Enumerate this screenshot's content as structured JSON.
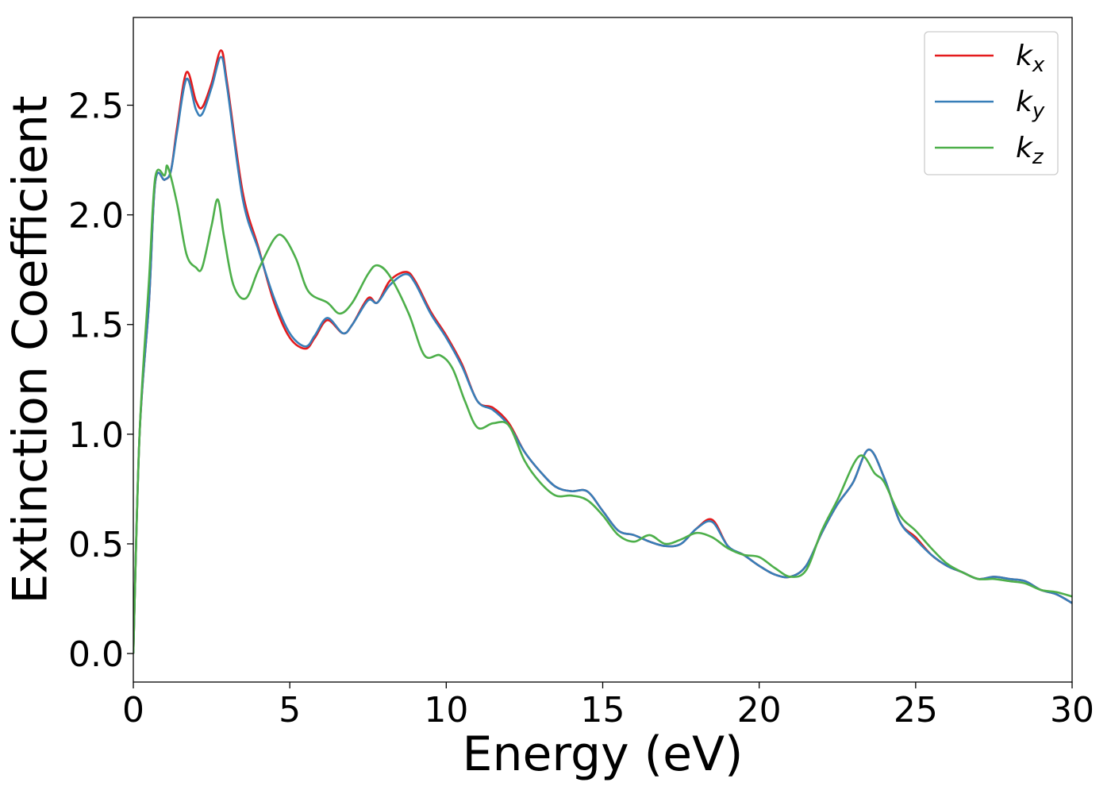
{
  "chart_data": {
    "type": "line",
    "title": "",
    "xlabel": "Energy (eV)",
    "ylabel": "Extinction Coefficient",
    "xlim": [
      0,
      30
    ],
    "ylim": [
      -0.13,
      2.9
    ],
    "xticks": [
      0,
      5,
      10,
      15,
      20,
      25,
      30
    ],
    "xtick_labels": [
      "0",
      "5",
      "10",
      "15",
      "20",
      "25",
      "30"
    ],
    "yticks": [
      0.0,
      0.5,
      1.0,
      1.5,
      2.0,
      2.5
    ],
    "ytick_labels": [
      "0.0",
      "0.5",
      "1.0",
      "1.5",
      "2.0",
      "2.5"
    ],
    "grid": false,
    "legend_position": "top-right",
    "series": [
      {
        "name": "k",
        "subscript": "x",
        "color": "#e41a1c",
        "points": [
          [
            0.0,
            0.0
          ],
          [
            0.2,
            1.0
          ],
          [
            0.5,
            1.6
          ],
          [
            0.7,
            2.15
          ],
          [
            1.0,
            2.16
          ],
          [
            1.2,
            2.2
          ],
          [
            1.4,
            2.4
          ],
          [
            1.7,
            2.65
          ],
          [
            2.0,
            2.52
          ],
          [
            2.2,
            2.49
          ],
          [
            2.5,
            2.6
          ],
          [
            2.8,
            2.75
          ],
          [
            3.0,
            2.6
          ],
          [
            3.5,
            2.1
          ],
          [
            4.0,
            1.85
          ],
          [
            4.5,
            1.6
          ],
          [
            5.0,
            1.44
          ],
          [
            5.5,
            1.39
          ],
          [
            5.8,
            1.44
          ],
          [
            6.2,
            1.52
          ],
          [
            6.7,
            1.46
          ],
          [
            7.0,
            1.5
          ],
          [
            7.5,
            1.62
          ],
          [
            7.8,
            1.6
          ],
          [
            8.2,
            1.7
          ],
          [
            8.7,
            1.74
          ],
          [
            9.0,
            1.7
          ],
          [
            9.5,
            1.56
          ],
          [
            10.0,
            1.45
          ],
          [
            10.5,
            1.32
          ],
          [
            11.0,
            1.15
          ],
          [
            11.5,
            1.12
          ],
          [
            12.0,
            1.05
          ],
          [
            12.5,
            0.92
          ],
          [
            13.0,
            0.83
          ],
          [
            13.5,
            0.76
          ],
          [
            14.0,
            0.74
          ],
          [
            14.5,
            0.74
          ],
          [
            15.0,
            0.65
          ],
          [
            15.5,
            0.56
          ],
          [
            16.0,
            0.54
          ],
          [
            16.5,
            0.51
          ],
          [
            17.0,
            0.49
          ],
          [
            17.5,
            0.5
          ],
          [
            18.0,
            0.57
          ],
          [
            18.5,
            0.61
          ],
          [
            19.0,
            0.49
          ],
          [
            19.5,
            0.45
          ],
          [
            20.0,
            0.4
          ],
          [
            20.5,
            0.36
          ],
          [
            21.0,
            0.35
          ],
          [
            21.5,
            0.4
          ],
          [
            22.0,
            0.55
          ],
          [
            22.5,
            0.68
          ],
          [
            23.0,
            0.78
          ],
          [
            23.5,
            0.93
          ],
          [
            24.0,
            0.8
          ],
          [
            24.5,
            0.6
          ],
          [
            25.0,
            0.53
          ],
          [
            25.5,
            0.45
          ],
          [
            26.0,
            0.4
          ],
          [
            26.5,
            0.37
          ],
          [
            27.0,
            0.34
          ],
          [
            27.5,
            0.35
          ],
          [
            28.0,
            0.34
          ],
          [
            28.5,
            0.33
          ],
          [
            29.0,
            0.29
          ],
          [
            29.5,
            0.27
          ],
          [
            30.0,
            0.23
          ]
        ]
      },
      {
        "name": "k",
        "subscript": "y",
        "color": "#377eb8",
        "points": [
          [
            0.0,
            0.0
          ],
          [
            0.2,
            1.0
          ],
          [
            0.5,
            1.6
          ],
          [
            0.7,
            2.15
          ],
          [
            1.0,
            2.16
          ],
          [
            1.2,
            2.2
          ],
          [
            1.4,
            2.38
          ],
          [
            1.7,
            2.62
          ],
          [
            2.0,
            2.48
          ],
          [
            2.2,
            2.46
          ],
          [
            2.5,
            2.58
          ],
          [
            2.8,
            2.72
          ],
          [
            3.0,
            2.58
          ],
          [
            3.5,
            2.07
          ],
          [
            4.0,
            1.84
          ],
          [
            4.5,
            1.62
          ],
          [
            5.0,
            1.46
          ],
          [
            5.5,
            1.4
          ],
          [
            5.8,
            1.45
          ],
          [
            6.2,
            1.53
          ],
          [
            6.7,
            1.46
          ],
          [
            7.0,
            1.5
          ],
          [
            7.5,
            1.61
          ],
          [
            7.8,
            1.6
          ],
          [
            8.2,
            1.68
          ],
          [
            8.7,
            1.73
          ],
          [
            9.0,
            1.69
          ],
          [
            9.5,
            1.55
          ],
          [
            10.0,
            1.44
          ],
          [
            10.5,
            1.31
          ],
          [
            11.0,
            1.15
          ],
          [
            11.5,
            1.11
          ],
          [
            12.0,
            1.04
          ],
          [
            12.5,
            0.92
          ],
          [
            13.0,
            0.83
          ],
          [
            13.5,
            0.76
          ],
          [
            14.0,
            0.74
          ],
          [
            14.5,
            0.74
          ],
          [
            15.0,
            0.65
          ],
          [
            15.5,
            0.56
          ],
          [
            16.0,
            0.54
          ],
          [
            16.5,
            0.51
          ],
          [
            17.0,
            0.49
          ],
          [
            17.5,
            0.5
          ],
          [
            18.0,
            0.57
          ],
          [
            18.5,
            0.6
          ],
          [
            19.0,
            0.49
          ],
          [
            19.5,
            0.45
          ],
          [
            20.0,
            0.4
          ],
          [
            20.5,
            0.36
          ],
          [
            21.0,
            0.35
          ],
          [
            21.5,
            0.4
          ],
          [
            22.0,
            0.55
          ],
          [
            22.5,
            0.68
          ],
          [
            23.0,
            0.78
          ],
          [
            23.5,
            0.93
          ],
          [
            24.0,
            0.8
          ],
          [
            24.5,
            0.6
          ],
          [
            25.0,
            0.52
          ],
          [
            25.5,
            0.45
          ],
          [
            26.0,
            0.4
          ],
          [
            26.5,
            0.37
          ],
          [
            27.0,
            0.34
          ],
          [
            27.5,
            0.35
          ],
          [
            28.0,
            0.34
          ],
          [
            28.5,
            0.33
          ],
          [
            29.0,
            0.29
          ],
          [
            29.5,
            0.27
          ],
          [
            30.0,
            0.23
          ]
        ]
      },
      {
        "name": "k",
        "subscript": "z",
        "color": "#4daf4a",
        "points": [
          [
            0.0,
            0.0
          ],
          [
            0.2,
            1.0
          ],
          [
            0.5,
            1.7
          ],
          [
            0.7,
            2.17
          ],
          [
            1.0,
            2.18
          ],
          [
            1.1,
            2.22
          ],
          [
            1.4,
            2.05
          ],
          [
            1.7,
            1.82
          ],
          [
            2.0,
            1.76
          ],
          [
            2.2,
            1.76
          ],
          [
            2.5,
            1.95
          ],
          [
            2.7,
            2.07
          ],
          [
            2.9,
            1.9
          ],
          [
            3.2,
            1.68
          ],
          [
            3.6,
            1.62
          ],
          [
            4.0,
            1.75
          ],
          [
            4.5,
            1.89
          ],
          [
            4.8,
            1.9
          ],
          [
            5.2,
            1.8
          ],
          [
            5.6,
            1.65
          ],
          [
            6.2,
            1.6
          ],
          [
            6.6,
            1.55
          ],
          [
            7.0,
            1.6
          ],
          [
            7.5,
            1.73
          ],
          [
            7.8,
            1.77
          ],
          [
            8.2,
            1.72
          ],
          [
            8.8,
            1.55
          ],
          [
            9.3,
            1.36
          ],
          [
            9.8,
            1.36
          ],
          [
            10.2,
            1.3
          ],
          [
            10.6,
            1.15
          ],
          [
            11.0,
            1.03
          ],
          [
            11.5,
            1.05
          ],
          [
            12.0,
            1.04
          ],
          [
            12.5,
            0.88
          ],
          [
            13.0,
            0.78
          ],
          [
            13.5,
            0.72
          ],
          [
            14.0,
            0.72
          ],
          [
            14.5,
            0.7
          ],
          [
            15.0,
            0.63
          ],
          [
            15.5,
            0.54
          ],
          [
            16.0,
            0.51
          ],
          [
            16.5,
            0.54
          ],
          [
            17.0,
            0.5
          ],
          [
            17.5,
            0.52
          ],
          [
            18.0,
            0.55
          ],
          [
            18.5,
            0.53
          ],
          [
            19.0,
            0.48
          ],
          [
            19.5,
            0.45
          ],
          [
            20.0,
            0.44
          ],
          [
            20.5,
            0.39
          ],
          [
            21.0,
            0.35
          ],
          [
            21.5,
            0.38
          ],
          [
            22.0,
            0.56
          ],
          [
            22.5,
            0.7
          ],
          [
            23.2,
            0.9
          ],
          [
            23.7,
            0.82
          ],
          [
            24.0,
            0.78
          ],
          [
            24.5,
            0.63
          ],
          [
            25.0,
            0.56
          ],
          [
            25.5,
            0.48
          ],
          [
            26.0,
            0.41
          ],
          [
            26.5,
            0.37
          ],
          [
            27.0,
            0.34
          ],
          [
            27.5,
            0.34
          ],
          [
            28.0,
            0.33
          ],
          [
            28.5,
            0.32
          ],
          [
            29.0,
            0.29
          ],
          [
            29.5,
            0.28
          ],
          [
            30.0,
            0.26
          ]
        ]
      }
    ]
  }
}
